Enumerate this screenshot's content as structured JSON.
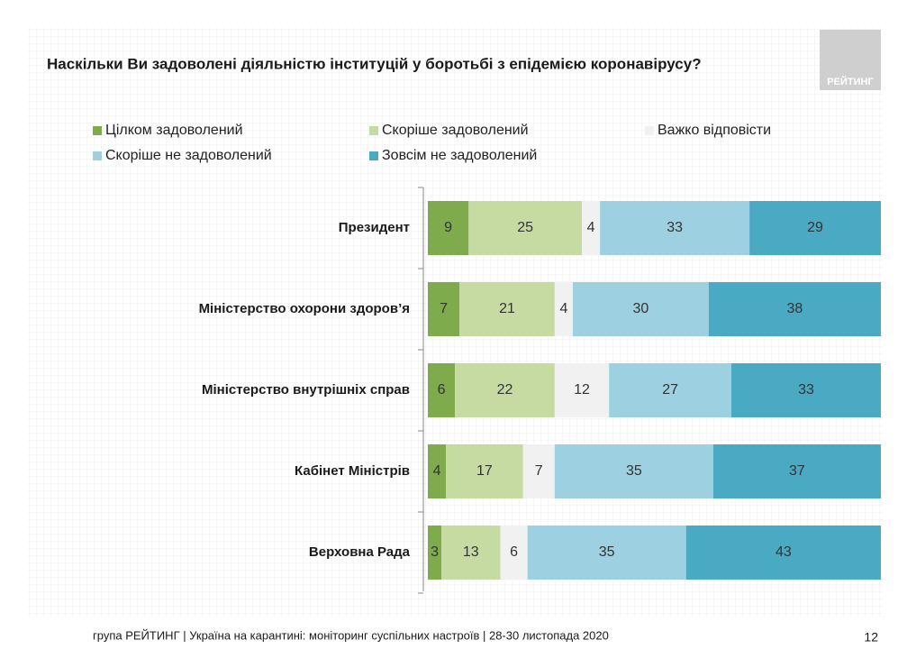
{
  "logo": "РЕЙТИНГ",
  "footer": "група РЕЙТИНГ | Україна на карантині: моніторинг суспільних настроїв | 28-30 листопада 2020",
  "page_number": "12",
  "chart_data": {
    "type": "stacked_bar_horizontal",
    "title": "Наскільки Ви задоволені діяльністю інституцій у боротьбі з епідемією коронавірусу?",
    "categories": [
      "Президент",
      "Міністерство охорони здоров’я",
      "Міністерство внутрішніх справ",
      "Кабінет Міністрів",
      "Верховна Рада"
    ],
    "series": [
      {
        "name": "Цілком задоволений",
        "color": "#7fab4c",
        "values": [
          9,
          7,
          6,
          4,
          3
        ]
      },
      {
        "name": "Скоріше задоволений",
        "color": "#c6dba2",
        "values": [
          25,
          21,
          22,
          17,
          13
        ]
      },
      {
        "name": "Важко відповісти",
        "color": "#f1f1f1",
        "values": [
          4,
          4,
          12,
          7,
          6
        ]
      },
      {
        "name": "Скоріше не задоволений",
        "color": "#9dd0e0",
        "values": [
          33,
          30,
          27,
          35,
          35
        ]
      },
      {
        "name": "Зовсім не задоволений",
        "color": "#4aaac3",
        "values": [
          29,
          38,
          33,
          37,
          43
        ]
      }
    ]
  }
}
